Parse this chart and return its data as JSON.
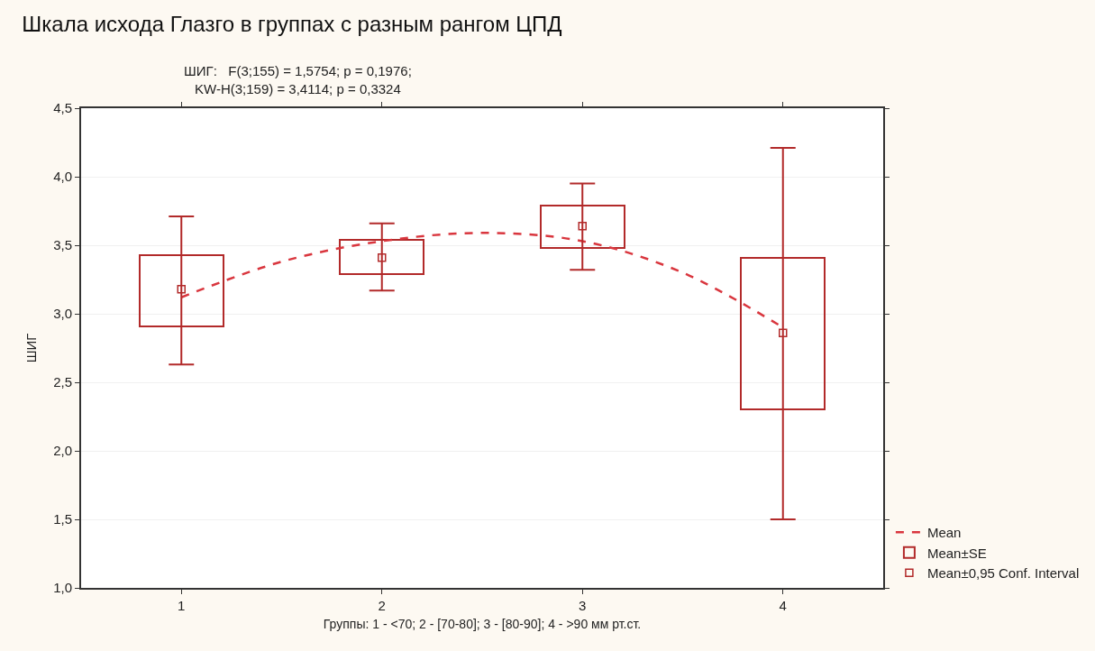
{
  "chart_data": {
    "type": "scatter",
    "title": "Шкала исхода Глазго в группах с разным рангом ЦПД",
    "subtitle": "ШИГ:   F(3;155) = 1,5754; p = 0,1976;\nKW-H(3;159) = 3,4114; p = 0,3324",
    "xlabel": "Группы: 1 - <70; 2 - [70-80]; 3 - [80-90]; 4 - >90 мм рт.ст.",
    "ylabel": "ШИГ",
    "xlim": [
      0.5,
      4.5
    ],
    "xticks": [
      1,
      2,
      3,
      4
    ],
    "ylim": [
      1.0,
      4.5
    ],
    "yticks": [
      {
        "value": 1.0,
        "label": "1,0"
      },
      {
        "value": 1.5,
        "label": "1,5"
      },
      {
        "value": 2.0,
        "label": "2,0"
      },
      {
        "value": 2.5,
        "label": "2,5"
      },
      {
        "value": 3.0,
        "label": "3,0"
      },
      {
        "value": 3.5,
        "label": "3,5"
      },
      {
        "value": 4.0,
        "label": "4,0"
      },
      {
        "value": 4.5,
        "label": "4,5"
      }
    ],
    "grid": "y",
    "legend": "bottom right",
    "series": [
      {
        "type": "line",
        "name": "Mean",
        "color": "#d9363e",
        "line_style": "dashed",
        "marker": "none",
        "x": [
          1,
          1.5,
          2,
          2.5,
          3,
          3.5,
          4
        ],
        "values": [
          3.12,
          3.38,
          3.53,
          3.59,
          3.53,
          3.3,
          2.9
        ]
      },
      {
        "type": "bar",
        "name": "Mean±SE",
        "color": "#b22a2a",
        "x": [
          1,
          2,
          3,
          4
        ],
        "base": [
          2.91,
          3.29,
          3.48,
          2.3
        ],
        "values": [
          0.52,
          0.25,
          0.31,
          1.11
        ]
      },
      {
        "name": "Mean±0,95 Conf. Interval",
        "color": "#b22a2a",
        "marker": "square",
        "x": [
          1,
          2,
          3,
          4
        ],
        "values": [
          3.18,
          3.41,
          3.64,
          2.86
        ],
        "errors": [
          [
            2.63,
            3.71
          ],
          [
            3.17,
            3.66
          ],
          [
            3.32,
            3.95
          ],
          [
            1.5,
            4.21
          ]
        ]
      }
    ]
  }
}
